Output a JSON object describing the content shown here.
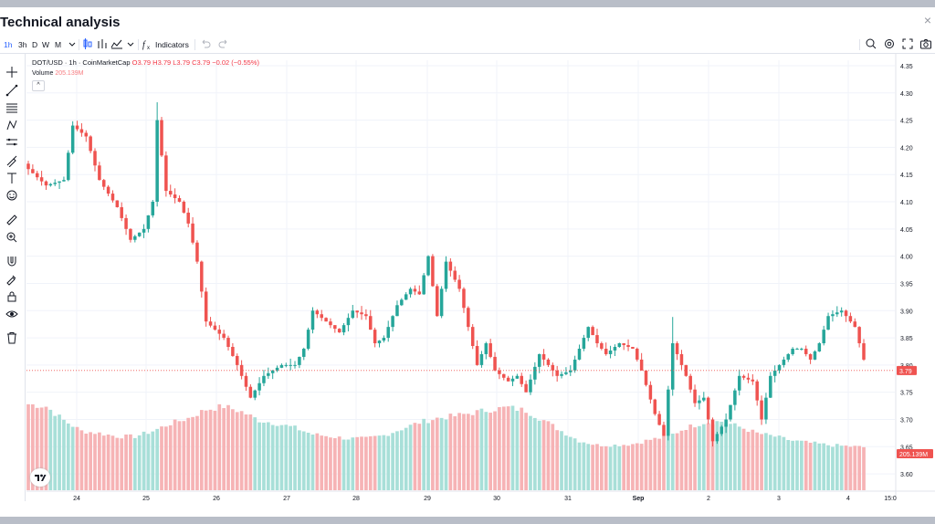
{
  "window": {
    "title": "Technical analysis",
    "close_glyph": "×"
  },
  "toolbar": {
    "intervals": [
      "1h",
      "3h",
      "D",
      "W",
      "M"
    ],
    "active_interval": "1h",
    "indicators_label": "Indicators",
    "icons": [
      "candles-icon",
      "compare-icon",
      "chart-type-icon",
      "chevron-down-icon",
      "fx-icon",
      "undo-icon",
      "redo-icon",
      "quick-search-icon",
      "settings-icon",
      "fullscreen-icon",
      "camera-icon"
    ]
  },
  "legend": {
    "symbol": "DOT/USD · 1h · CoinMarketCap",
    "open": "O3.79",
    "high": "H3.79",
    "low": "L3.79",
    "close": "C3.79",
    "change": "−0.02 (−0.55%)",
    "volume_label": "Volume",
    "volume_value": "205.139M",
    "collapse_glyph": "^"
  },
  "price_axis": {
    "labels": [
      "4.35",
      "4.30",
      "4.25",
      "4.20",
      "4.15",
      "4.10",
      "4.05",
      "4.00",
      "3.95",
      "3.90",
      "3.85",
      "3.80",
      "3.75",
      "3.70",
      "3.65",
      "3.60"
    ],
    "current_price": "3.79",
    "volume_tag": "205.139M"
  },
  "time_axis": {
    "labels": [
      "24",
      "25",
      "26",
      "27",
      "28",
      "29",
      "30",
      "31",
      "Sep",
      "2",
      "3",
      "4",
      "15:0"
    ]
  },
  "colors": {
    "up": "#26a69a",
    "down": "#ef5350",
    "up_volume": "#a8dfd8",
    "down_volume": "#f6b3b5",
    "grid": "#f0f3fa",
    "axis_text": "#131722",
    "accent": "#2962ff"
  },
  "chart_data": {
    "type": "candlestick",
    "title": "DOT/USD · 1h · CoinMarketCap",
    "symbol": "DOT/USD",
    "interval": "1h",
    "ylim": [
      3.57,
      4.36
    ],
    "x_ticks": [
      "24",
      "25",
      "26",
      "27",
      "28",
      "29",
      "30",
      "31",
      "Sep",
      "2",
      "3",
      "4"
    ],
    "close_keypoints": [
      [
        0,
        4.16
      ],
      [
        4,
        4.13
      ],
      [
        8,
        4.14
      ],
      [
        10,
        4.24
      ],
      [
        13,
        4.22
      ],
      [
        16,
        4.14
      ],
      [
        20,
        4.09
      ],
      [
        23,
        4.03
      ],
      [
        26,
        4.05
      ],
      [
        28,
        4.1
      ],
      [
        29,
        4.25
      ],
      [
        31,
        4.12
      ],
      [
        34,
        4.1
      ],
      [
        36,
        4.06
      ],
      [
        38,
        3.99
      ],
      [
        40,
        3.88
      ],
      [
        44,
        3.85
      ],
      [
        47,
        3.8
      ],
      [
        50,
        3.74
      ],
      [
        53,
        3.78
      ],
      [
        57,
        3.8
      ],
      [
        60,
        3.8
      ],
      [
        62,
        3.83
      ],
      [
        64,
        3.9
      ],
      [
        67,
        3.88
      ],
      [
        70,
        3.86
      ],
      [
        73,
        3.9
      ],
      [
        76,
        3.89
      ],
      [
        78,
        3.84
      ],
      [
        80,
        3.85
      ],
      [
        83,
        3.91
      ],
      [
        86,
        3.94
      ],
      [
        88,
        3.93
      ],
      [
        90,
        4.0
      ],
      [
        92,
        3.89
      ],
      [
        94,
        3.99
      ],
      [
        97,
        3.94
      ],
      [
        99,
        3.87
      ],
      [
        101,
        3.8
      ],
      [
        103,
        3.84
      ],
      [
        105,
        3.79
      ],
      [
        108,
        3.77
      ],
      [
        110,
        3.78
      ],
      [
        112,
        3.75
      ],
      [
        115,
        3.82
      ],
      [
        117,
        3.8
      ],
      [
        119,
        3.78
      ],
      [
        122,
        3.79
      ],
      [
        124,
        3.83
      ],
      [
        126,
        3.87
      ],
      [
        128,
        3.84
      ],
      [
        130,
        3.82
      ],
      [
        133,
        3.84
      ],
      [
        136,
        3.83
      ],
      [
        138,
        3.79
      ],
      [
        141,
        3.71
      ],
      [
        143,
        3.67
      ],
      [
        145,
        3.84
      ],
      [
        148,
        3.78
      ],
      [
        150,
        3.73
      ],
      [
        152,
        3.74
      ],
      [
        154,
        3.66
      ],
      [
        157,
        3.7
      ],
      [
        160,
        3.78
      ],
      [
        163,
        3.77
      ],
      [
        165,
        3.7
      ],
      [
        167,
        3.78
      ],
      [
        169,
        3.8
      ],
      [
        172,
        3.83
      ],
      [
        174,
        3.83
      ],
      [
        176,
        3.81
      ],
      [
        178,
        3.84
      ],
      [
        180,
        3.89
      ],
      [
        183,
        3.9
      ],
      [
        186,
        3.87
      ],
      [
        188,
        3.81
      ]
    ],
    "volume_keypoints": [
      [
        0,
        0.8
      ],
      [
        4,
        0.78
      ],
      [
        8,
        0.65
      ],
      [
        12,
        0.55
      ],
      [
        16,
        0.53
      ],
      [
        20,
        0.5
      ],
      [
        24,
        0.5
      ],
      [
        28,
        0.55
      ],
      [
        32,
        0.62
      ],
      [
        36,
        0.67
      ],
      [
        40,
        0.75
      ],
      [
        44,
        0.78
      ],
      [
        48,
        0.73
      ],
      [
        52,
        0.65
      ],
      [
        56,
        0.62
      ],
      [
        60,
        0.58
      ],
      [
        64,
        0.52
      ],
      [
        68,
        0.5
      ],
      [
        72,
        0.48
      ],
      [
        76,
        0.48
      ],
      [
        80,
        0.51
      ],
      [
        84,
        0.57
      ],
      [
        88,
        0.63
      ],
      [
        92,
        0.67
      ],
      [
        96,
        0.69
      ],
      [
        100,
        0.72
      ],
      [
        104,
        0.75
      ],
      [
        108,
        0.77
      ],
      [
        112,
        0.74
      ],
      [
        116,
        0.65
      ],
      [
        120,
        0.55
      ],
      [
        124,
        0.46
      ],
      [
        128,
        0.42
      ],
      [
        132,
        0.42
      ],
      [
        136,
        0.43
      ],
      [
        140,
        0.47
      ],
      [
        144,
        0.5
      ],
      [
        148,
        0.58
      ],
      [
        152,
        0.63
      ],
      [
        156,
        0.64
      ],
      [
        160,
        0.59
      ],
      [
        164,
        0.53
      ],
      [
        168,
        0.5
      ],
      [
        172,
        0.46
      ],
      [
        176,
        0.44
      ],
      [
        180,
        0.42
      ],
      [
        184,
        0.41
      ],
      [
        188,
        0.4
      ]
    ],
    "volume_value": "205.139M",
    "last_price": 3.79
  }
}
